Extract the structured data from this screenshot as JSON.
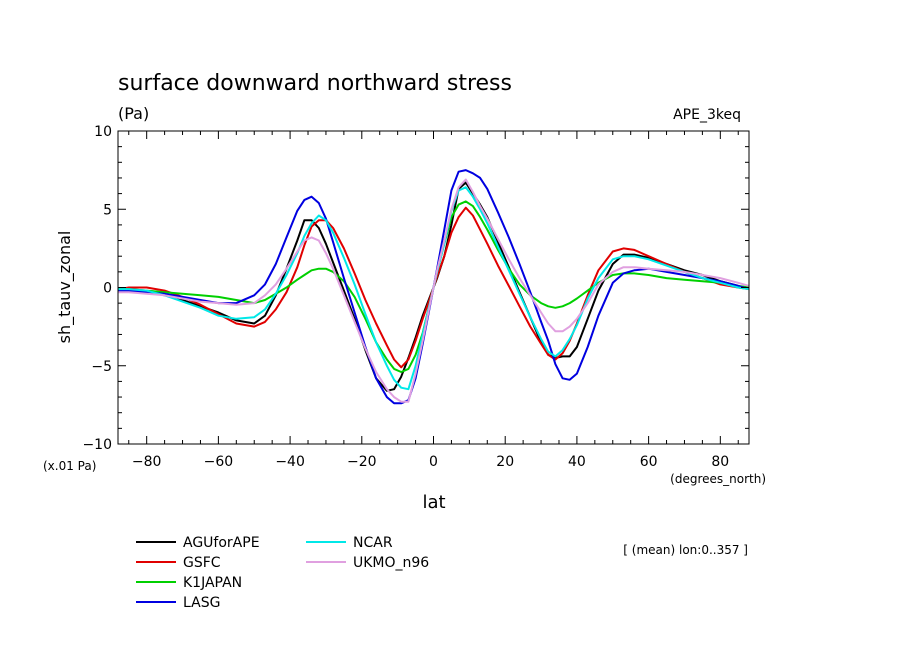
{
  "chart_data": {
    "type": "line",
    "title": "surface downward northward stress",
    "units_label": "(Pa)",
    "experiment_label": "APE_3keq",
    "ylabel": "sh_tauv_zonal",
    "xlabel": "lat",
    "x_unit_label": "(degrees_north)",
    "y_scale_label": "(x.01 Pa)",
    "mean_note": "[ (mean) lon:0..357 ]",
    "xlim": [
      -88,
      88
    ],
    "ylim": [
      -10,
      10
    ],
    "x_ticks": [
      -80,
      -60,
      -40,
      -20,
      0,
      20,
      40,
      60,
      80
    ],
    "x_tick_labels": [
      "−80",
      "−60",
      "−40",
      "−20",
      "0",
      "20",
      "40",
      "60",
      "80"
    ],
    "y_ticks": [
      10,
      5,
      0,
      -5,
      -10
    ],
    "y_tick_labels": [
      "10",
      "5",
      "0",
      "−5",
      "−10"
    ],
    "x_minor_step": 5,
    "y_minor_step": 1,
    "grid": false,
    "legend_position": "bottom-left",
    "x": [
      -88,
      -85,
      -80,
      -75,
      -70,
      -65,
      -60,
      -55,
      -50,
      -47,
      -44,
      -41,
      -38,
      -36,
      -34,
      -32,
      -30,
      -28,
      -25,
      -22,
      -19,
      -16,
      -13,
      -11,
      -9,
      -7,
      -5,
      -3,
      -1,
      0,
      1,
      3,
      5,
      7,
      9,
      11,
      13,
      15,
      18,
      21,
      24,
      27,
      30,
      32,
      34,
      36,
      38,
      40,
      43,
      46,
      50,
      53,
      56,
      60,
      65,
      70,
      75,
      80,
      85,
      88
    ],
    "series": [
      {
        "name": "AGUforAPE",
        "color": "#000000",
        "values": [
          -0.2,
          -0.2,
          -0.3,
          -0.5,
          -0.8,
          -1.2,
          -1.6,
          -2.1,
          -2.3,
          -1.8,
          -0.5,
          1.2,
          3.0,
          4.3,
          4.3,
          3.8,
          2.8,
          1.6,
          -0.2,
          -2.0,
          -4.0,
          -5.8,
          -6.6,
          -6.5,
          -5.7,
          -4.5,
          -3.2,
          -1.8,
          -0.6,
          0.0,
          0.6,
          2.0,
          4.0,
          6.3,
          6.7,
          6.0,
          5.3,
          4.5,
          2.9,
          1.3,
          -0.3,
          -1.9,
          -3.5,
          -4.3,
          -4.5,
          -4.4,
          -4.4,
          -3.8,
          -2.0,
          -0.2,
          1.5,
          2.1,
          2.1,
          1.9,
          1.5,
          1.1,
          0.8,
          0.4,
          0.1,
          -0.1
        ]
      },
      {
        "name": "GSFC",
        "color": "#e00000",
        "values": [
          -0.1,
          0.0,
          0.0,
          -0.2,
          -0.6,
          -1.1,
          -1.7,
          -2.3,
          -2.5,
          -2.2,
          -1.4,
          -0.3,
          1.3,
          2.7,
          3.9,
          4.3,
          4.3,
          3.8,
          2.5,
          0.9,
          -0.8,
          -2.3,
          -3.7,
          -4.6,
          -5.1,
          -4.6,
          -3.4,
          -2.0,
          -0.7,
          0.0,
          0.7,
          2.0,
          3.5,
          4.5,
          5.1,
          4.6,
          3.7,
          2.8,
          1.4,
          0.1,
          -1.2,
          -2.5,
          -3.6,
          -4.3,
          -4.6,
          -4.2,
          -3.4,
          -2.3,
          -0.5,
          1.1,
          2.3,
          2.5,
          2.4,
          2.0,
          1.5,
          1.0,
          0.6,
          0.2,
          0.0,
          -0.1
        ]
      },
      {
        "name": "K1JAPAN",
        "color": "#00d000",
        "values": [
          -0.1,
          -0.1,
          -0.2,
          -0.3,
          -0.4,
          -0.5,
          -0.6,
          -0.8,
          -1.0,
          -0.8,
          -0.4,
          0.0,
          0.5,
          0.8,
          1.1,
          1.2,
          1.2,
          1.0,
          0.4,
          -0.6,
          -2.0,
          -3.5,
          -4.6,
          -5.2,
          -5.4,
          -5.2,
          -4.3,
          -2.9,
          -1.0,
          0.0,
          1.0,
          2.8,
          4.5,
          5.3,
          5.5,
          5.2,
          4.5,
          3.7,
          2.4,
          1.2,
          0.2,
          -0.5,
          -1.0,
          -1.2,
          -1.3,
          -1.2,
          -1.0,
          -0.7,
          -0.2,
          0.3,
          0.8,
          0.9,
          0.9,
          0.8,
          0.6,
          0.5,
          0.4,
          0.3,
          0.1,
          0.0
        ]
      },
      {
        "name": "LASG",
        "color": "#0000e0",
        "values": [
          -0.2,
          -0.2,
          -0.3,
          -0.4,
          -0.6,
          -0.8,
          -1.0,
          -1.0,
          -0.5,
          0.2,
          1.5,
          3.2,
          4.9,
          5.6,
          5.8,
          5.4,
          4.4,
          2.9,
          0.6,
          -1.6,
          -3.8,
          -5.8,
          -7.0,
          -7.4,
          -7.4,
          -7.2,
          -5.8,
          -3.6,
          -1.2,
          0.0,
          1.2,
          3.7,
          6.2,
          7.4,
          7.5,
          7.3,
          7.0,
          6.3,
          4.8,
          3.2,
          1.5,
          -0.3,
          -2.2,
          -3.4,
          -4.9,
          -5.8,
          -5.9,
          -5.5,
          -3.8,
          -1.8,
          0.3,
          0.9,
          1.1,
          1.2,
          1.0,
          0.8,
          0.6,
          0.4,
          0.1,
          -0.1
        ]
      },
      {
        "name": "NCAR",
        "color": "#00e8e8",
        "values": [
          -0.1,
          -0.1,
          -0.2,
          -0.5,
          -0.9,
          -1.3,
          -1.8,
          -2.0,
          -1.9,
          -1.4,
          -0.4,
          0.8,
          2.2,
          3.3,
          4.1,
          4.6,
          4.3,
          3.5,
          1.9,
          0.2,
          -1.7,
          -3.5,
          -5.0,
          -5.9,
          -6.4,
          -6.5,
          -5.0,
          -3.0,
          -1.0,
          0.0,
          1.0,
          2.8,
          4.9,
          6.2,
          6.4,
          5.8,
          5.0,
          4.1,
          2.6,
          1.1,
          -0.4,
          -1.9,
          -3.3,
          -4.1,
          -4.4,
          -4.0,
          -3.3,
          -2.4,
          -0.7,
          0.6,
          1.8,
          2.0,
          2.0,
          1.8,
          1.4,
          1.0,
          0.6,
          0.3,
          0.0,
          -0.1
        ]
      },
      {
        "name": "UKMO_n96",
        "color": "#e0a0e0",
        "values": [
          -0.3,
          -0.3,
          -0.4,
          -0.5,
          -0.7,
          -0.9,
          -1.0,
          -1.1,
          -1.0,
          -0.5,
          0.2,
          1.2,
          2.3,
          3.0,
          3.2,
          3.0,
          2.2,
          1.2,
          -0.5,
          -2.2,
          -3.9,
          -5.4,
          -6.5,
          -7.0,
          -7.3,
          -7.3,
          -5.5,
          -3.4,
          -1.1,
          0.0,
          1.1,
          3.0,
          5.0,
          6.4,
          6.9,
          6.1,
          5.2,
          4.4,
          3.1,
          1.8,
          0.6,
          -0.5,
          -1.6,
          -2.3,
          -2.8,
          -2.8,
          -2.5,
          -2.0,
          -1.0,
          0.2,
          1.0,
          1.3,
          1.3,
          1.2,
          1.1,
          1.0,
          0.8,
          0.6,
          0.3,
          0.1
        ]
      }
    ]
  }
}
